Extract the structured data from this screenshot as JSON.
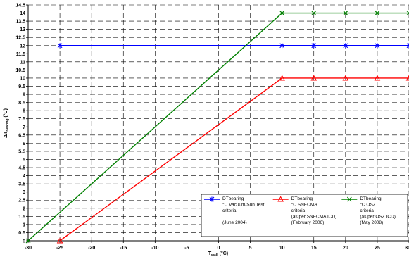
{
  "chart_data": {
    "type": "line",
    "xlim": [
      -30,
      30
    ],
    "ylim": [
      0,
      14.5
    ],
    "x_ticks": [
      -30,
      -25,
      -20,
      -15,
      -10,
      -5,
      0,
      5,
      10,
      15,
      20,
      25,
      30
    ],
    "y_ticks": [
      0,
      0.5,
      1,
      1.5,
      2,
      2.5,
      3,
      3.5,
      4,
      4.5,
      5,
      5.5,
      6,
      6.5,
      7,
      7.5,
      8,
      8.5,
      9,
      9.5,
      10,
      10.5,
      11,
      11.5,
      12,
      12.5,
      13,
      13.5,
      14,
      14.5
    ],
    "x_tick_labels": [
      "-30",
      "-25",
      "-20",
      "-15",
      "-10",
      "-5",
      "0",
      "5",
      "10",
      "15",
      "20",
      "25",
      "30"
    ],
    "y_tick_labels": [
      "0",
      "0.5",
      "1",
      "1.5",
      "2",
      "2.5",
      "3",
      "3.5",
      "4",
      "4.5",
      "5",
      "5.5",
      "6",
      "6.5",
      "7",
      "7.5",
      "8",
      "8.5",
      "9",
      "9.5",
      "10",
      "10.5",
      "11",
      "11.5",
      "12",
      "12.5",
      "13",
      "13.5",
      "14",
      "14.5"
    ],
    "xlabel": {
      "main": "T",
      "sub": "wall",
      "unit": " (°C)"
    },
    "ylabel": {
      "main": "ΔT",
      "sub": "bearing",
      "unit": " (°C)"
    },
    "grid": true,
    "legend_position": "bottom-right",
    "series": [
      {
        "name": "DTbearing °C Vacuum/Sun Test criteria (June 2004)",
        "legend_lines": [
          "DTbearing",
          "°C Vacuum/Sun Test",
          "criteria",
          "",
          "(June 2004)"
        ],
        "color": "#0000ff",
        "marker": "star",
        "x": [
          -25,
          10,
          15,
          20,
          25,
          30
        ],
        "y": [
          12,
          12,
          12,
          12,
          12,
          12
        ]
      },
      {
        "name": "DTbearing °C SNECMA criteria (as per SNECMA ICD) (February 2006)",
        "legend_lines": [
          "DTbearing",
          "°C SNECMA",
          "criteria",
          "(as per SNECMA ICD)",
          "(February 2006)"
        ],
        "color": "#ff0000",
        "marker": "triangle",
        "x": [
          -25,
          10,
          15,
          20,
          25,
          30
        ],
        "y": [
          0,
          10,
          10,
          10,
          10,
          10
        ]
      },
      {
        "name": "DTbearing °C OSZ criteria (as per OSZ ICD) (May 2008)",
        "legend_lines": [
          "DTbearing",
          "°C OSZ",
          "criteria",
          "(as per OSZ ICD)",
          "(May 2008)"
        ],
        "color": "#008000",
        "marker": "x",
        "x": [
          -30,
          10,
          15,
          20,
          25,
          30
        ],
        "y": [
          0,
          14,
          14,
          14,
          14,
          14
        ]
      }
    ]
  }
}
